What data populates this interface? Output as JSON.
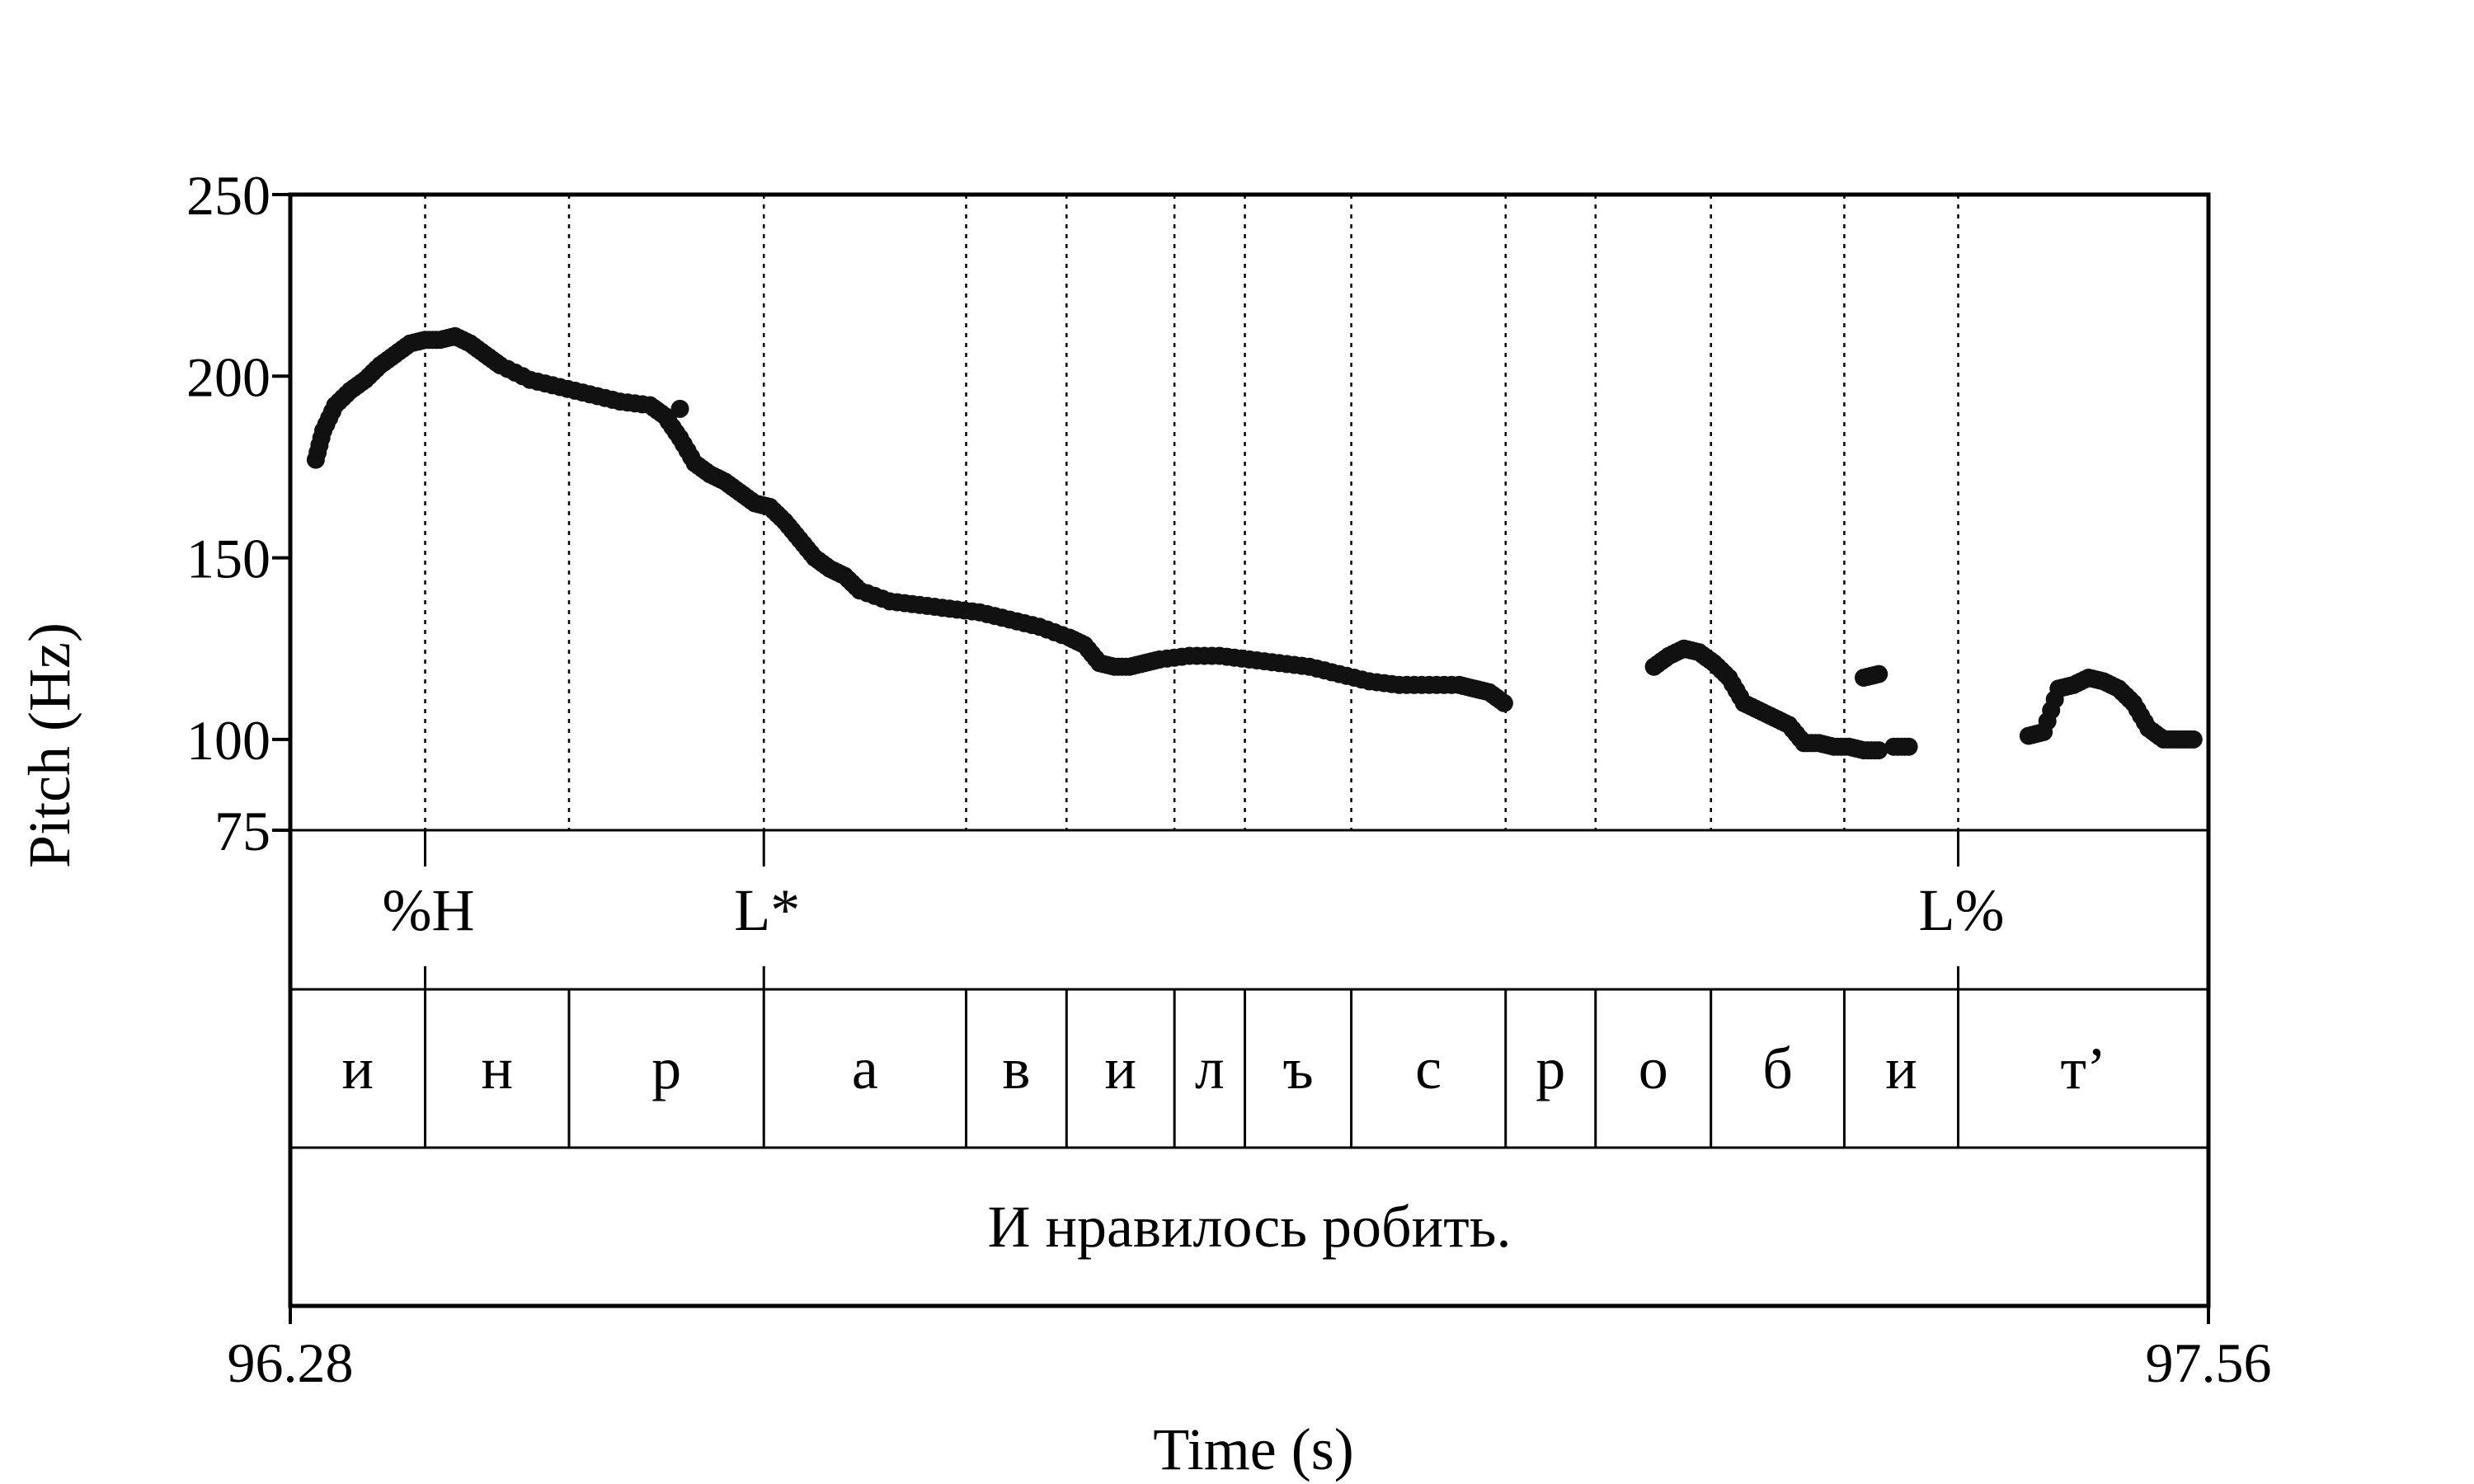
{
  "chart_data": {
    "type": "scatter",
    "xlabel": "Time (s)",
    "ylabel": "Pitch (Hz)",
    "xlim": [
      96.28,
      97.56
    ],
    "ylim": [
      75,
      250
    ],
    "x_tick_labels": [
      "96.28",
      "97.56"
    ],
    "y_ticks": [
      75,
      100,
      150,
      200,
      250
    ],
    "y_tick_labels": [
      "75",
      "100",
      "150",
      "200",
      "250"
    ],
    "grid": false,
    "legend": "none",
    "colors": {
      "points": "#111111",
      "lines": "#000000",
      "background": "#ffffff"
    },
    "pitch_segments": [
      [
        [
          96.297,
          177
        ],
        [
          96.302,
          185
        ],
        [
          96.31,
          192
        ],
        [
          96.32,
          196
        ],
        [
          96.33,
          199
        ],
        [
          96.34,
          203
        ],
        [
          96.35,
          206
        ],
        [
          96.36,
          209
        ],
        [
          96.37,
          210
        ],
        [
          96.38,
          210
        ],
        [
          96.39,
          211
        ],
        [
          96.4,
          209
        ],
        [
          96.41,
          206
        ],
        [
          96.42,
          203
        ],
        [
          96.44,
          199
        ],
        [
          96.46,
          197
        ],
        [
          96.48,
          195
        ],
        [
          96.5,
          193
        ],
        [
          96.52,
          192
        ],
        [
          96.53,
          189
        ],
        [
          96.54,
          183
        ],
        [
          96.55,
          176
        ],
        [
          96.56,
          173
        ],
        [
          96.57,
          171
        ],
        [
          96.58,
          168
        ],
        [
          96.59,
          165
        ],
        [
          96.6,
          164
        ],
        [
          96.61,
          160
        ],
        [
          96.62,
          155
        ],
        [
          96.63,
          150
        ],
        [
          96.64,
          147
        ],
        [
          96.65,
          145
        ],
        [
          96.66,
          141
        ],
        [
          96.68,
          138
        ],
        [
          96.7,
          137
        ],
        [
          96.72,
          136
        ],
        [
          96.74,
          135
        ],
        [
          96.76,
          133
        ],
        [
          96.78,
          131
        ],
        [
          96.8,
          128
        ],
        [
          96.81,
          126
        ],
        [
          96.82,
          121
        ],
        [
          96.83,
          120
        ],
        [
          96.84,
          120
        ],
        [
          96.85,
          121
        ],
        [
          96.86,
          122
        ],
        [
          96.88,
          123
        ],
        [
          96.9,
          123
        ],
        [
          96.92,
          122
        ],
        [
          96.94,
          121
        ],
        [
          96.96,
          120
        ],
        [
          96.98,
          118
        ],
        [
          97.0,
          116
        ],
        [
          97.02,
          115
        ],
        [
          97.04,
          115
        ],
        [
          97.06,
          115
        ],
        [
          97.07,
          114
        ],
        [
          97.08,
          113
        ],
        [
          97.09,
          110
        ]
      ],
      [
        [
          96.54,
          191
        ]
      ],
      [
        [
          97.19,
          120
        ],
        [
          97.2,
          123
        ],
        [
          97.21,
          125
        ],
        [
          97.22,
          124
        ],
        [
          97.23,
          121
        ],
        [
          97.24,
          117
        ],
        [
          97.25,
          110
        ],
        [
          97.26,
          108
        ],
        [
          97.27,
          106
        ],
        [
          97.28,
          104
        ],
        [
          97.29,
          99
        ],
        [
          97.3,
          99
        ],
        [
          97.31,
          98
        ],
        [
          97.32,
          98
        ],
        [
          97.33,
          97
        ],
        [
          97.34,
          97
        ]
      ],
      [
        [
          97.33,
          117
        ],
        [
          97.34,
          118
        ]
      ],
      [
        [
          97.35,
          98
        ],
        [
          97.36,
          98
        ]
      ],
      [
        [
          97.44,
          101
        ],
        [
          97.45,
          102
        ],
        [
          97.46,
          114
        ],
        [
          97.47,
          115
        ],
        [
          97.48,
          117
        ],
        [
          97.49,
          116
        ],
        [
          97.5,
          114
        ],
        [
          97.51,
          110
        ],
        [
          97.52,
          103
        ],
        [
          97.53,
          100
        ],
        [
          97.54,
          100
        ],
        [
          97.55,
          100
        ]
      ]
    ],
    "segment_boundaries": [
      96.37,
      96.466,
      96.596,
      96.731,
      96.798,
      96.87,
      96.917,
      96.988,
      97.091,
      97.151,
      97.228,
      97.317,
      97.393
    ],
    "tone_tier": [
      {
        "label": "%H",
        "time": 96.37
      },
      {
        "label": "L*",
        "time": 96.596
      },
      {
        "label": "L%",
        "time": 97.393
      }
    ],
    "segment_tier": [
      "и",
      "н",
      "р",
      "а",
      "в",
      "и",
      "л",
      "ъ",
      "с",
      "р",
      "о",
      "б",
      "и",
      "т’"
    ],
    "utterance_tier": [
      "И нравилось робить."
    ]
  }
}
